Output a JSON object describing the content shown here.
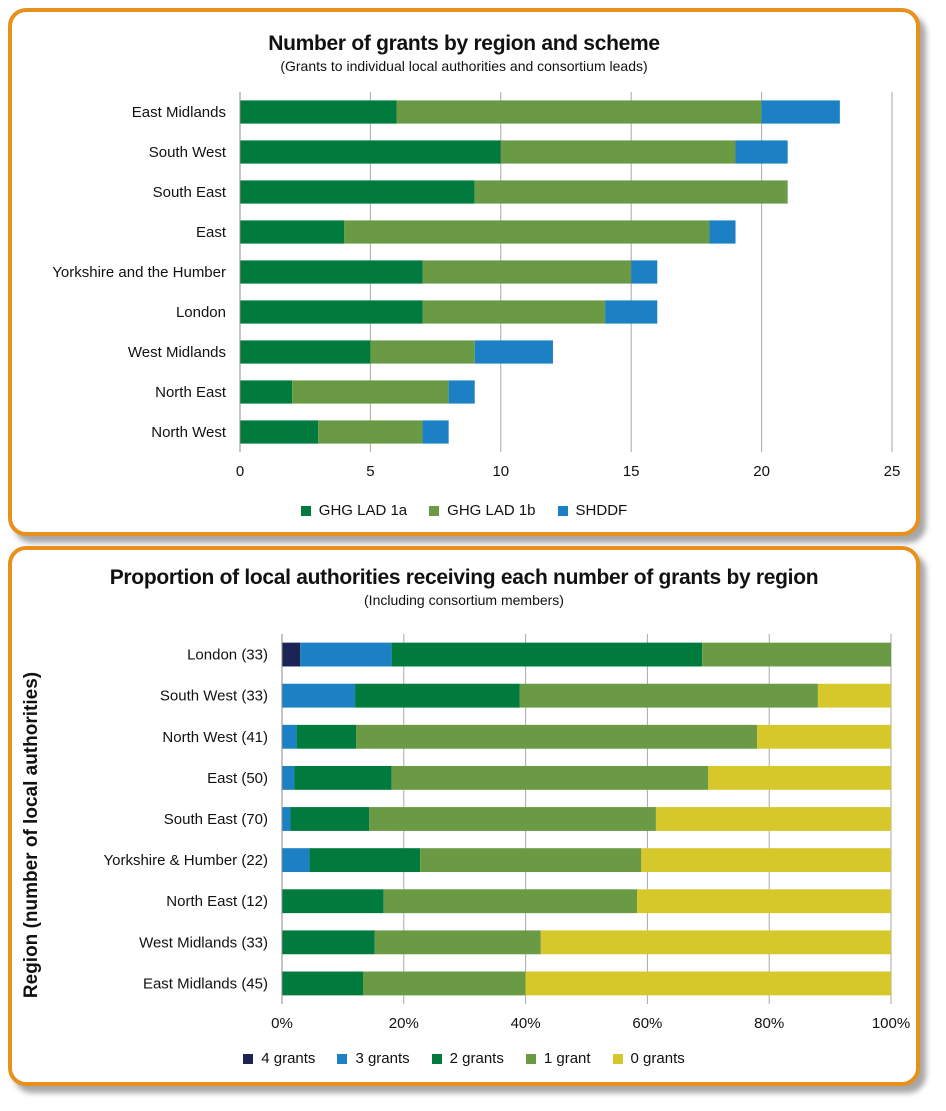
{
  "chart_data": [
    {
      "type": "bar",
      "orientation": "horizontal",
      "stacked": true,
      "title": "Number of grants by region and scheme",
      "subtitle": "(Grants to individual local authorities and consortium leads)",
      "categories": [
        "East Midlands",
        "South West",
        "South East",
        "East",
        "Yorkshire and the Humber",
        "London",
        "West Midlands",
        "North East",
        "North West"
      ],
      "series": [
        {
          "name": "GHG LAD 1a",
          "color": "#007a3d",
          "values": [
            6,
            10,
            9,
            4,
            7,
            7,
            5,
            2,
            3
          ]
        },
        {
          "name": "GHG LAD 1b",
          "color": "#6a9a43",
          "values": [
            14,
            9,
            12,
            14,
            8,
            7,
            4,
            6,
            4
          ]
        },
        {
          "name": "SHDDF",
          "color": "#1b80c4",
          "values": [
            3,
            2,
            0,
            1,
            1,
            2,
            3,
            1,
            1
          ]
        }
      ],
      "xlim": [
        0,
        25
      ],
      "xticks": [
        "0",
        "5",
        "10",
        "15",
        "20",
        "25"
      ],
      "grid": "vertical",
      "legend": "bottom"
    },
    {
      "type": "bar",
      "orientation": "horizontal",
      "stacked": true,
      "percent": true,
      "title": "Proportion of local authorities receiving each number of grants by region",
      "subtitle": "(Including consortium members)",
      "ylabel": "Region (number of local authorities)",
      "categories": [
        "London (33)",
        "South West (33)",
        "North West (41)",
        "East (50)",
        "South East (70)",
        "Yorkshire & Humber (22)",
        "North East (12)",
        "West Midlands (33)",
        "East Midlands (45)"
      ],
      "series": [
        {
          "name": "4 grants",
          "color": "#1c2456",
          "values": [
            3,
            0,
            0,
            0,
            0,
            0,
            0,
            0,
            0
          ]
        },
        {
          "name": "3 grants",
          "color": "#1b80c4",
          "values": [
            15,
            12,
            2.4,
            2,
            1.4,
            4.5,
            0,
            0,
            0
          ]
        },
        {
          "name": "2 grants",
          "color": "#007a3d",
          "values": [
            51,
            27,
            9.8,
            16,
            12.9,
            18.2,
            16.7,
            15.2,
            13.3
          ]
        },
        {
          "name": "1 grant",
          "color": "#6a9a43",
          "values": [
            31,
            49,
            65.8,
            52,
            47.1,
            36.3,
            41.6,
            27.3,
            26.7
          ]
        },
        {
          "name": "0 grants",
          "color": "#d6c72b",
          "values": [
            0,
            12,
            22,
            30,
            38.6,
            41,
            41.7,
            57.5,
            60
          ]
        }
      ],
      "xlim": [
        0,
        100
      ],
      "xticks": [
        "0%",
        "20%",
        "40%",
        "60%",
        "80%",
        "100%"
      ],
      "grid": "vertical",
      "legend": "bottom"
    }
  ]
}
